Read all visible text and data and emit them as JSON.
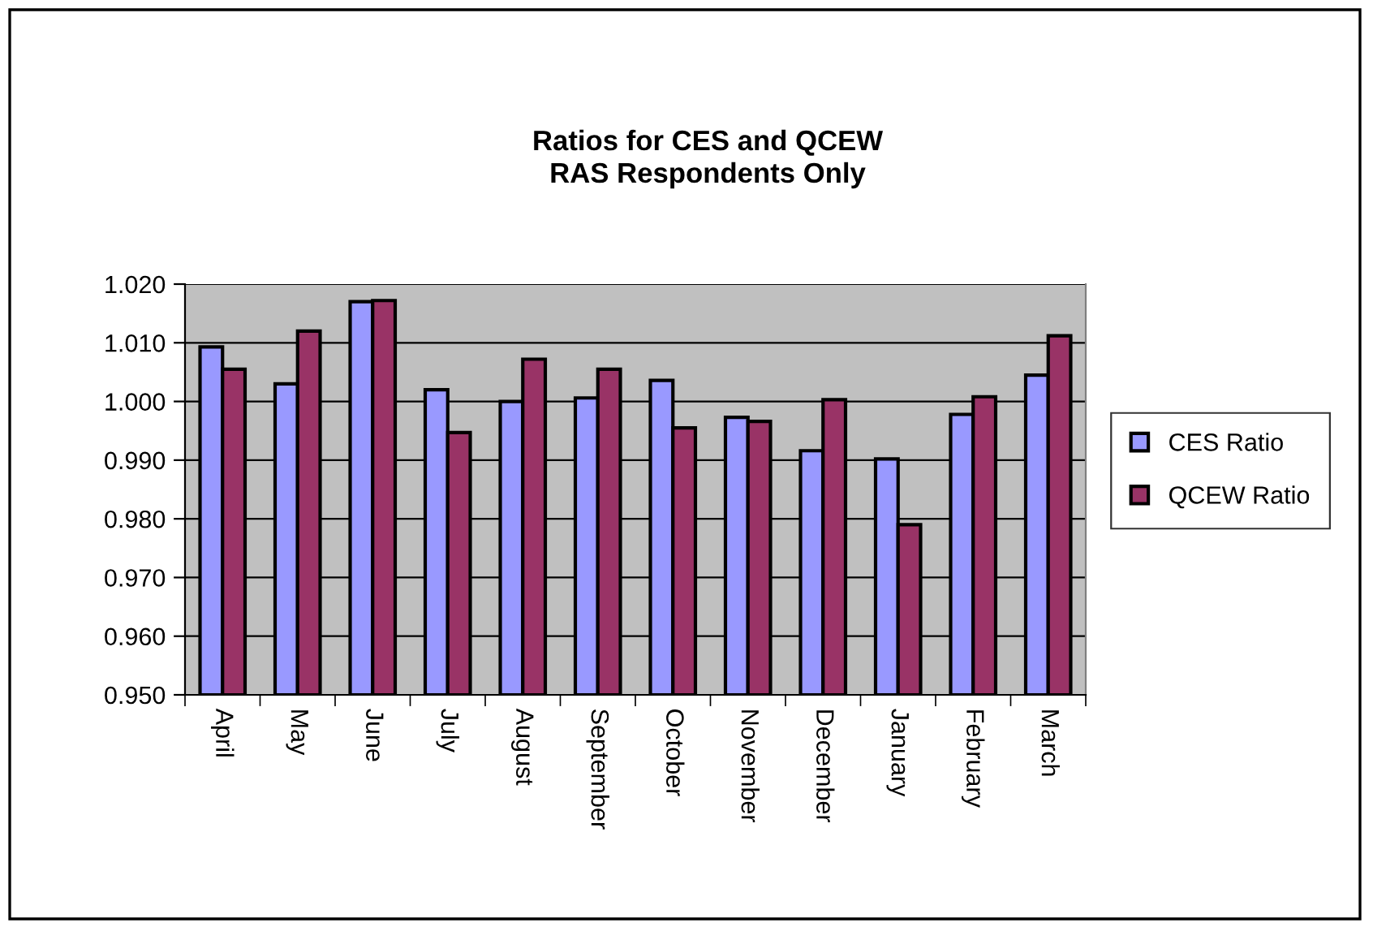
{
  "chart_data": {
    "type": "bar",
    "title": "Ratios for CES and QCEW\nRAS Respondents Only",
    "categories": [
      "April",
      "May",
      "June",
      "July",
      "August",
      "September",
      "October",
      "November",
      "December",
      "January",
      "February",
      "March"
    ],
    "series": [
      {
        "name": "CES Ratio",
        "color": "#9999ff",
        "values": [
          1.0093,
          1.003,
          1.017,
          1.002,
          1.0,
          1.0006,
          1.0036,
          0.9973,
          0.9916,
          0.9902,
          0.9978,
          1.0045
        ]
      },
      {
        "name": "QCEW Ratio",
        "color": "#993366",
        "values": [
          1.0055,
          1.012,
          1.0172,
          0.9947,
          1.0072,
          1.0055,
          0.9955,
          0.9966,
          1.0003,
          0.979,
          1.0008,
          1.0112
        ]
      }
    ],
    "ylim": [
      0.95,
      1.02
    ],
    "yticks": [
      {
        "value": 0.95,
        "label": "0.950"
      },
      {
        "value": 0.96,
        "label": "0.960"
      },
      {
        "value": 0.97,
        "label": "0.970"
      },
      {
        "value": 0.98,
        "label": "0.980"
      },
      {
        "value": 0.99,
        "label": "0.990"
      },
      {
        "value": 1.0,
        "label": "1.000"
      },
      {
        "value": 1.01,
        "label": "1.010"
      },
      {
        "value": 1.02,
        "label": "1.020"
      }
    ],
    "grid": "y",
    "legend": "right"
  }
}
